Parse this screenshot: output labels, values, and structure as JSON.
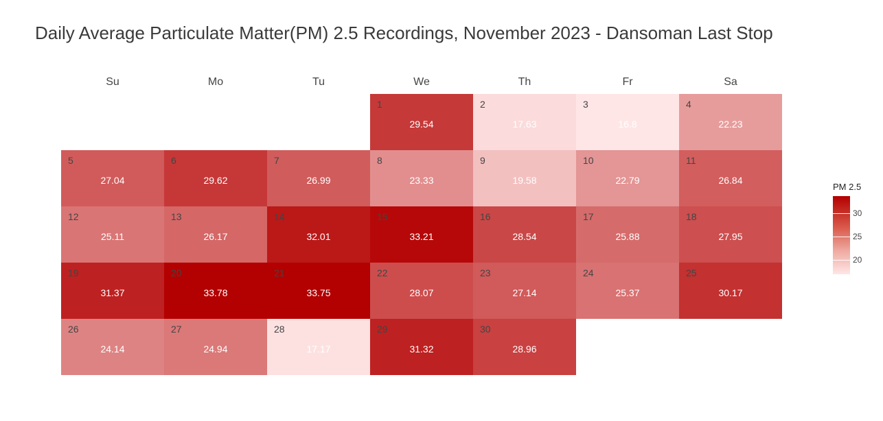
{
  "chart_data": {
    "type": "heatmap",
    "title": "Daily Average Particulate Matter(PM) 2.5 Recordings, November 2023 - Dansoman Last Stop",
    "weekdays": [
      "Su",
      "Mo",
      "Tu",
      "We",
      "Th",
      "Fr",
      "Sa"
    ],
    "first_weekday_index": 3,
    "days": [
      1,
      2,
      3,
      4,
      5,
      6,
      7,
      8,
      9,
      10,
      11,
      12,
      13,
      14,
      15,
      16,
      17,
      18,
      19,
      20,
      21,
      22,
      23,
      24,
      25,
      26,
      27,
      28,
      29,
      30
    ],
    "values": [
      29.54,
      17.63,
      16.8,
      22.23,
      27.04,
      29.62,
      26.99,
      23.33,
      19.58,
      22.79,
      26.84,
      25.11,
      26.17,
      32.01,
      33.21,
      28.54,
      25.88,
      27.95,
      31.37,
      33.78,
      33.75,
      28.07,
      27.14,
      25.37,
      30.17,
      24.14,
      24.94,
      17.17,
      31.32,
      28.96
    ],
    "value_labels": [
      "29.54",
      "17.63",
      "16.8",
      "22.23",
      "27.04",
      "29.62",
      "26.99",
      "23.33",
      "19.58",
      "22.79",
      "26.84",
      "25.11",
      "26.17",
      "32.01",
      "33.21",
      "28.54",
      "25.88",
      "27.95",
      "31.37",
      "33.78",
      "33.75",
      "28.07",
      "27.14",
      "25.37",
      "30.17",
      "24.14",
      "24.94",
      "17.17",
      "31.32",
      "28.96"
    ],
    "legend": {
      "title": "PM 2.5",
      "ticks": [
        20,
        25,
        30
      ],
      "tick_labels": [
        "20",
        "25",
        "30"
      ],
      "range": [
        16.8,
        33.78
      ],
      "low_color": "#ffe6e6",
      "high_color": "#b30000",
      "placement": "right"
    }
  }
}
